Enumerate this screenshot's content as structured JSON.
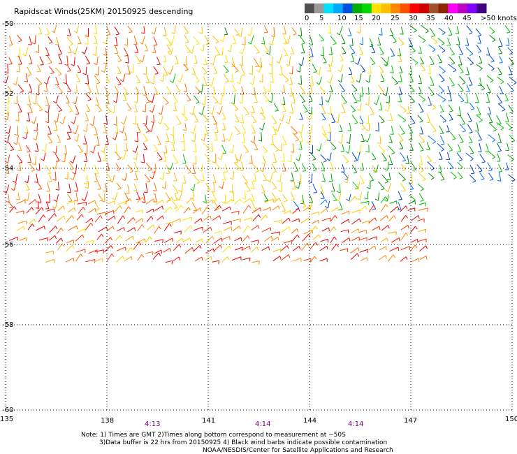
{
  "title": "Rapidscat Winds(25KM) 20150925 descending",
  "legend": {
    "labels": [
      "0",
      "5",
      "10",
      "15",
      "20",
      "25",
      "30",
      "35",
      "40",
      "45",
      ">50 knots"
    ],
    "colors": [
      "#505050",
      "#9a9a9a",
      "#00e0ff",
      "#00a8ff",
      "#0050e0",
      "#00b000",
      "#00d800",
      "#ffe000",
      "#ffc000",
      "#ff8800",
      "#ff5000",
      "#ff0000",
      "#d00000",
      "#a0522d",
      "#8b2500",
      "#ff00ff",
      "#c000c0",
      "#8000ff",
      "#400080"
    ]
  },
  "map": {
    "lon_ticks": [
      "135",
      "138",
      "141",
      "144",
      "147",
      "150"
    ],
    "lat_ticks": [
      "-50",
      "-52",
      "-54",
      "-56",
      "-58",
      "-60"
    ],
    "times": [
      "4:13",
      "4:14",
      "4:14"
    ],
    "swath_color_zones": {
      "west": "red/orange",
      "central": "yellow",
      "east": "green/blue",
      "south_band": "red/orange"
    }
  },
  "notes": [
    "Note: 1) Times are GMT 2)Times along bottom correspond to measurement at ~50S",
    "3)Data buffer is 22 hrs from 20150925 4) Black wind barbs indicate possible contamination",
    "NOAA/NESDIS/Center for Satellite Applications and Research"
  ]
}
